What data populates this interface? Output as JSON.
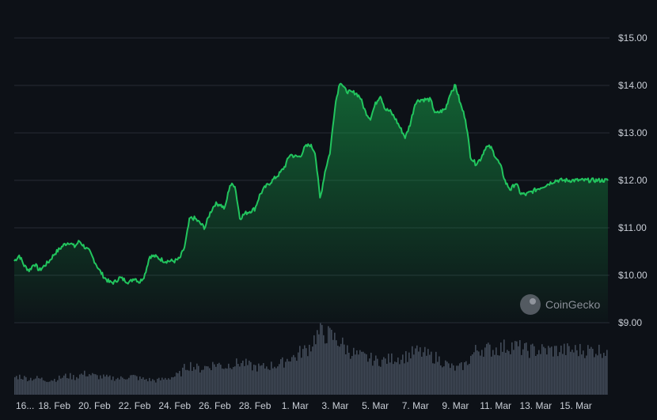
{
  "chart_data": {
    "type": "area",
    "title": "",
    "xlabel": "",
    "ylabel": "",
    "ylim": [
      9.0,
      15.0
    ],
    "y_ticks": [
      "$15.00",
      "$14.00",
      "$13.00",
      "$12.00",
      "$11.00",
      "$10.00",
      "$9.00"
    ],
    "y_tick_values": [
      15,
      14,
      13,
      12,
      11,
      10,
      9
    ],
    "x_ticks": [
      "16...",
      "18. Feb",
      "20. Feb",
      "22. Feb",
      "24. Feb",
      "26. Feb",
      "28. Feb",
      "1. Mar",
      "3. Mar",
      "5. Mar",
      "7. Mar",
      "9. Mar",
      "11. Mar",
      "13. Mar",
      "15. Mar"
    ],
    "x_tick_day_positions": [
      0,
      2,
      4,
      6,
      8,
      10,
      12,
      14,
      16,
      18,
      20,
      22,
      24,
      26,
      28
    ],
    "x_range_days": [
      0,
      29.6
    ],
    "grid": true,
    "colors": {
      "line": "#22c55e",
      "fill_top": "#16a34a",
      "volume": "#4b5563",
      "grid": "#262c36",
      "background": "#0d1117"
    },
    "series": [
      {
        "x": [
          0,
          0.25,
          0.5,
          0.75,
          1,
          1.25,
          1.5,
          1.75,
          2,
          2.25,
          2.5,
          2.75,
          3,
          3.25,
          3.5,
          3.75,
          4,
          4.25,
          4.5,
          4.75,
          5,
          5.25,
          5.5,
          5.75,
          6,
          6.25,
          6.5,
          6.75,
          7,
          7.25,
          7.5,
          7.75,
          8,
          8.25,
          8.5,
          8.75,
          9,
          9.25,
          9.5,
          9.75,
          10,
          10.25,
          10.5,
          10.75,
          11,
          11.25,
          11.5,
          11.75,
          12,
          12.25,
          12.5,
          12.75,
          13,
          13.25,
          13.5,
          13.75,
          14,
          14.25,
          14.5,
          14.75,
          15,
          15.25,
          15.5,
          15.75,
          16,
          16.25,
          16.5,
          16.75,
          17,
          17.25,
          17.5,
          17.75,
          18,
          18.25,
          18.5,
          18.75,
          19,
          19.25,
          19.5,
          19.75,
          20,
          20.25,
          20.5,
          20.75,
          21,
          21.25,
          21.5,
          21.75,
          22,
          22.25,
          22.5,
          22.75,
          23,
          23.25,
          23.5,
          23.75,
          24,
          24.25,
          24.5,
          24.75,
          25,
          25.25,
          25.5,
          25.75,
          26,
          26.25,
          26.5,
          26.75,
          27,
          27.25,
          27.5,
          27.75,
          28,
          28.25,
          28.5,
          28.75,
          29,
          29.25,
          29.5,
          29.6
        ],
        "price": [
          10.3,
          10.42,
          10.2,
          10.1,
          10.25,
          10.1,
          10.2,
          10.3,
          10.45,
          10.55,
          10.65,
          10.7,
          10.6,
          10.72,
          10.6,
          10.5,
          10.3,
          10.1,
          9.95,
          9.85,
          9.85,
          9.95,
          9.9,
          9.85,
          9.95,
          9.85,
          10.0,
          10.4,
          10.4,
          10.35,
          10.3,
          10.3,
          10.3,
          10.35,
          10.6,
          11.2,
          11.2,
          11.1,
          11.0,
          11.3,
          11.5,
          11.5,
          11.4,
          11.9,
          11.9,
          11.2,
          11.3,
          11.35,
          11.4,
          11.7,
          11.85,
          11.95,
          12.05,
          12.15,
          12.3,
          12.55,
          12.5,
          12.5,
          12.7,
          12.75,
          12.6,
          11.6,
          12.2,
          12.6,
          13.6,
          14.1,
          13.9,
          13.85,
          13.85,
          13.75,
          13.45,
          13.3,
          13.6,
          13.8,
          13.5,
          13.45,
          13.3,
          13.1,
          12.9,
          13.2,
          13.65,
          13.7,
          13.7,
          13.7,
          13.4,
          13.45,
          13.5,
          13.85,
          14.0,
          13.6,
          13.3,
          12.5,
          12.35,
          12.45,
          12.7,
          12.7,
          12.5,
          12.3,
          11.95,
          11.8,
          11.95,
          11.72,
          11.7,
          11.75,
          11.8,
          11.85,
          11.9,
          11.95,
          12.0,
          12.0,
          12.0,
          12.0,
          12.0,
          12.0,
          12.0,
          12.0,
          12.0,
          12.0,
          12.0,
          12.0,
          12.0,
          12.0
        ],
        "volume_relative": [
          0.28,
          0.3,
          0.27,
          0.26,
          0.27,
          0.26,
          0.24,
          0.24,
          0.25,
          0.27,
          0.3,
          0.3,
          0.28,
          0.32,
          0.34,
          0.33,
          0.3,
          0.29,
          0.28,
          0.27,
          0.27,
          0.26,
          0.28,
          0.3,
          0.29,
          0.26,
          0.25,
          0.24,
          0.23,
          0.24,
          0.26,
          0.28,
          0.3,
          0.34,
          0.45,
          0.48,
          0.44,
          0.42,
          0.45,
          0.47,
          0.5,
          0.48,
          0.45,
          0.5,
          0.5,
          0.52,
          0.5,
          0.46,
          0.45,
          0.44,
          0.45,
          0.47,
          0.48,
          0.5,
          0.55,
          0.62,
          0.6,
          0.7,
          0.72,
          0.8,
          0.95,
          1.0,
          0.98,
          0.95,
          0.9,
          0.85,
          0.75,
          0.7,
          0.65,
          0.62,
          0.6,
          0.58,
          0.55,
          0.55,
          0.56,
          0.58,
          0.6,
          0.6,
          0.62,
          0.66,
          0.7,
          0.68,
          0.65,
          0.62,
          0.6,
          0.55,
          0.5,
          0.45,
          0.42,
          0.45,
          0.5,
          0.62,
          0.72,
          0.75,
          0.74,
          0.73,
          0.74,
          0.76,
          0.78,
          0.8,
          0.78,
          0.75,
          0.72,
          0.72,
          0.72,
          0.72,
          0.72,
          0.72,
          0.72,
          0.72,
          0.72,
          0.72,
          0.72,
          0.72,
          0.72,
          0.72,
          0.72,
          0.72,
          0.72,
          0.72
        ]
      }
    ],
    "watermark": "CoinGecko"
  }
}
